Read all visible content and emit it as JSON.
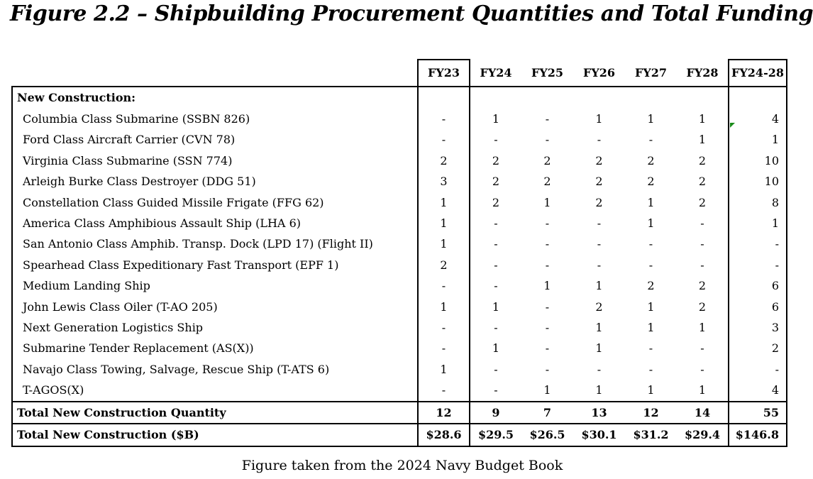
{
  "figure": {
    "title": "Figure 2.2 – Shipbuilding Procurement Quantities and Total Funding",
    "caption": "Figure taken from the 2024 Navy Budget Book"
  },
  "table": {
    "columns": [
      "FY23",
      "FY24",
      "FY25",
      "FY26",
      "FY27",
      "FY28",
      "FY24-28"
    ],
    "section_label": "New Construction:",
    "rows": [
      {
        "label": "Columbia Class Submarine (SSBN 826)",
        "values": [
          "-",
          "1",
          "-",
          "1",
          "1",
          "1",
          "4"
        ]
      },
      {
        "label": "Ford Class Aircraft Carrier (CVN 78)",
        "values": [
          "-",
          "-",
          "-",
          "-",
          "-",
          "1",
          "1"
        ]
      },
      {
        "label": "Virginia Class Submarine (SSN 774)",
        "values": [
          "2",
          "2",
          "2",
          "2",
          "2",
          "2",
          "10"
        ]
      },
      {
        "label": "Arleigh Burke Class Destroyer (DDG 51)",
        "values": [
          "3",
          "2",
          "2",
          "2",
          "2",
          "2",
          "10"
        ]
      },
      {
        "label": "Constellation Class Guided Missile Frigate (FFG 62)",
        "values": [
          "1",
          "2",
          "1",
          "2",
          "1",
          "2",
          "8"
        ]
      },
      {
        "label": "America Class Amphibious Assault Ship (LHA 6)",
        "values": [
          "1",
          "-",
          "-",
          "-",
          "1",
          "-",
          "1"
        ]
      },
      {
        "label": "San Antonio Class Amphib. Transp. Dock (LPD 17) (Flight II)",
        "values": [
          "1",
          "-",
          "-",
          "-",
          "-",
          "-",
          "-"
        ]
      },
      {
        "label": "Spearhead Class Expeditionary Fast Transport (EPF 1)",
        "values": [
          "2",
          "-",
          "-",
          "-",
          "-",
          "-",
          "-"
        ]
      },
      {
        "label": "Medium Landing Ship",
        "values": [
          "-",
          "-",
          "1",
          "1",
          "2",
          "2",
          "6"
        ]
      },
      {
        "label": "John Lewis Class Oiler (T-AO 205)",
        "values": [
          "1",
          "1",
          "-",
          "2",
          "1",
          "2",
          "6"
        ]
      },
      {
        "label": "Next Generation Logistics Ship",
        "values": [
          "-",
          "-",
          "-",
          "1",
          "1",
          "1",
          "3"
        ]
      },
      {
        "label": "Submarine Tender Replacement (AS(X))",
        "values": [
          "-",
          "1",
          "-",
          "1",
          "-",
          "-",
          "2"
        ]
      },
      {
        "label": "Navajo Class Towing, Salvage, Rescue Ship (T-ATS 6)",
        "values": [
          "1",
          "-",
          "-",
          "-",
          "-",
          "-",
          "-"
        ]
      },
      {
        "label": "T-AGOS(X)",
        "values": [
          "-",
          "-",
          "1",
          "1",
          "1",
          "1",
          "4"
        ]
      }
    ],
    "totals": [
      {
        "label": "Total New Construction Quantity",
        "values": [
          "12",
          "9",
          "7",
          "13",
          "12",
          "14",
          "55"
        ]
      },
      {
        "label": "Total New Construction ($B)",
        "values": [
          "$28.6",
          "$29.5",
          "$26.5",
          "$30.1",
          "$31.2",
          "$29.4",
          "$146.8"
        ]
      }
    ]
  },
  "colors": {
    "comment_marker": "#1a8a1a"
  }
}
